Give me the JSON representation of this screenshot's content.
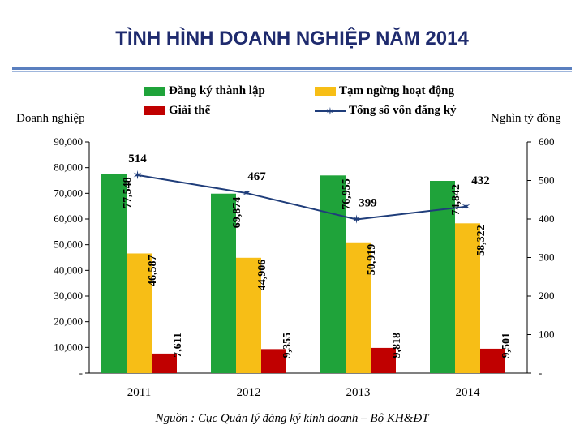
{
  "chart_data": {
    "type": "bar",
    "title": "TÌNH HÌNH DOANH NGHIỆP NĂM 2014",
    "ylabel_left": "Doanh nghiệp",
    "ylabel_right": "Nghìn tỷ đồng",
    "source": "Nguồn : Cục Quản lý đăng ký kinh doanh – Bộ KH&ĐT",
    "categories": [
      "2011",
      "2012",
      "2013",
      "2014"
    ],
    "ylim_left": [
      0,
      90000
    ],
    "ylim_right": [
      0,
      600
    ],
    "yticks_left": [
      "-",
      "10,000",
      "20,000",
      "30,000",
      "40,000",
      "50,000",
      "60,000",
      "70,000",
      "80,000",
      "90,000"
    ],
    "yticks_right": [
      "-",
      "100",
      "200",
      "300",
      "400",
      "500",
      "600"
    ],
    "series": [
      {
        "name": "Đăng ký thành lập",
        "color": "#1fa33a",
        "values": [
          77548,
          69874,
          76955,
          74842
        ],
        "labels": [
          "77,548",
          "69,874",
          "76,955",
          "74,842"
        ]
      },
      {
        "name": "Tạm ngừng hoạt động",
        "color": "#f7be16",
        "values": [
          46587,
          44906,
          50919,
          58322
        ],
        "labels": [
          "46,587",
          "44,906",
          "50,919",
          "58,322"
        ]
      },
      {
        "name": "Giải thể",
        "color": "#c00000",
        "values": [
          7611,
          9355,
          9818,
          9501
        ],
        "labels": [
          "7,611",
          "9,355",
          "9,818",
          "9,501"
        ]
      }
    ],
    "line_series": {
      "name": "Tổng số vốn đăng ký",
      "color": "#1f3d7a",
      "axis": "right",
      "values": [
        514,
        467,
        399,
        432
      ],
      "labels": [
        "514",
        "467",
        "399",
        "432"
      ]
    }
  }
}
